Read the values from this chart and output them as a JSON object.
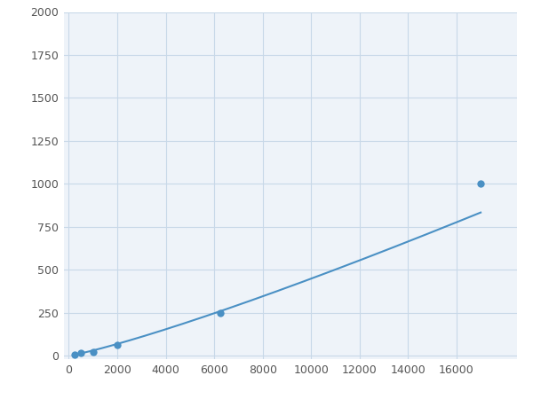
{
  "x": [
    250,
    500,
    1000,
    2000,
    6250,
    17000
  ],
  "y": [
    8,
    14,
    20,
    65,
    250,
    1000
  ],
  "line_color": "#4a90c4",
  "marker_color": "#4a90c4",
  "marker_size": 36,
  "line_width": 1.5,
  "xlim": [
    -200,
    18500
  ],
  "ylim": [
    -20,
    2000
  ],
  "xticks": [
    0,
    2000,
    4000,
    6000,
    8000,
    10000,
    12000,
    14000,
    16000
  ],
  "yticks": [
    0,
    250,
    500,
    750,
    1000,
    1250,
    1500,
    1750,
    2000
  ],
  "grid_color": "#c8d8e8",
  "plot_bg": "#eef3f9",
  "figure_bg": "#ffffff",
  "tick_color": "#555555",
  "tick_fontsize": 9
}
